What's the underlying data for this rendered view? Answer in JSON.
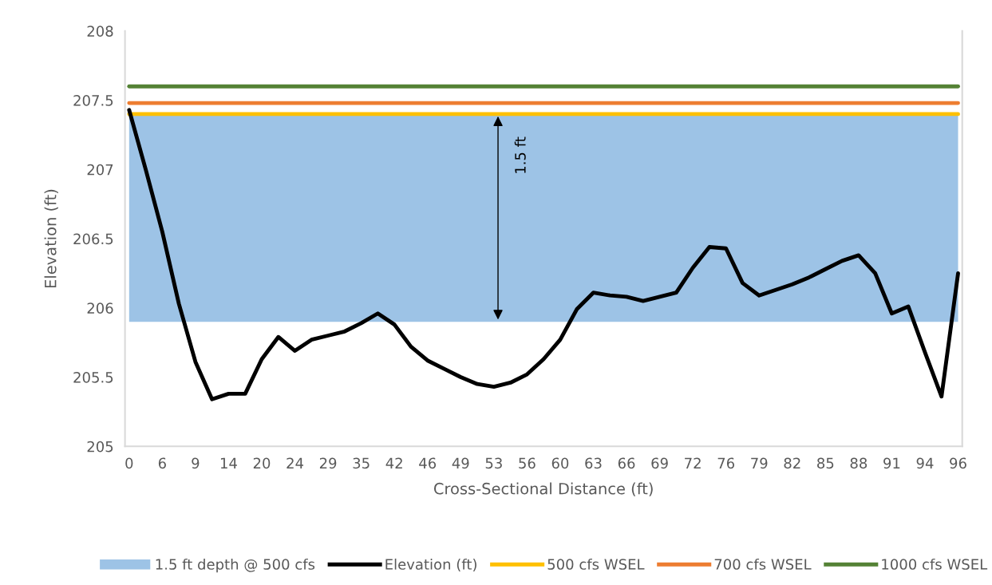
{
  "chart_data": {
    "type": "line",
    "xlabel": "Cross-Sectional Distance (ft)",
    "ylabel": "Elevation (ft)",
    "categories": [
      "0",
      null,
      "6",
      null,
      "9",
      null,
      "14",
      null,
      "20",
      null,
      "24",
      null,
      "29",
      null,
      "35",
      null,
      "42",
      null,
      "46",
      null,
      "49",
      null,
      "53",
      null,
      "56",
      null,
      "60",
      null,
      "63",
      null,
      "66",
      null,
      "69",
      null,
      "72",
      null,
      "76",
      null,
      "79",
      null,
      "82",
      null,
      "85",
      null,
      "88",
      null,
      "91",
      null,
      "94",
      null,
      "96"
    ],
    "series": [
      {
        "name": "Elevation (ft)",
        "color": "#000000",
        "values": [
          207.43,
          207.0,
          206.55,
          206.03,
          205.61,
          205.34,
          205.38,
          205.38,
          205.63,
          205.79,
          205.69,
          205.77,
          205.8,
          205.83,
          205.89,
          205.96,
          205.88,
          205.72,
          205.62,
          205.56,
          205.5,
          205.45,
          205.43,
          205.46,
          205.52,
          205.63,
          205.77,
          205.99,
          206.11,
          206.09,
          206.08,
          206.05,
          206.08,
          206.11,
          206.29,
          206.44,
          206.43,
          206.18,
          206.09,
          206.13,
          206.17,
          206.22,
          206.28,
          206.34,
          206.38,
          206.25,
          205.96,
          206.01,
          205.68,
          205.36,
          206.25
        ]
      },
      {
        "name": "500 cfs WSEL",
        "color": "#ffc000",
        "values": [
          207.4,
          207.4,
          207.4,
          207.4,
          207.4,
          207.4,
          207.4,
          207.4,
          207.4,
          207.4,
          207.4,
          207.4,
          207.4,
          207.4,
          207.4,
          207.4,
          207.4,
          207.4,
          207.4,
          207.4,
          207.4,
          207.4,
          207.4,
          207.4,
          207.4,
          207.4,
          207.4,
          207.4,
          207.4,
          207.4,
          207.4,
          207.4,
          207.4,
          207.4,
          207.4,
          207.4,
          207.4,
          207.4,
          207.4,
          207.4,
          207.4,
          207.4,
          207.4,
          207.4,
          207.4,
          207.4,
          207.4,
          207.4,
          207.4,
          207.4,
          207.4
        ]
      },
      {
        "name": "700 cfs WSEL",
        "color": "#ed7d31",
        "values": [
          207.48,
          207.48,
          207.48,
          207.48,
          207.48,
          207.48,
          207.48,
          207.48,
          207.48,
          207.48,
          207.48,
          207.48,
          207.48,
          207.48,
          207.48,
          207.48,
          207.48,
          207.48,
          207.48,
          207.48,
          207.48,
          207.48,
          207.48,
          207.48,
          207.48,
          207.48,
          207.48,
          207.48,
          207.48,
          207.48,
          207.48,
          207.48,
          207.48,
          207.48,
          207.48,
          207.48,
          207.48,
          207.48,
          207.48,
          207.48,
          207.48,
          207.48,
          207.48,
          207.48,
          207.48,
          207.48,
          207.48,
          207.48,
          207.48,
          207.48,
          207.48
        ]
      },
      {
        "name": "1000 cfs WSEL",
        "color": "#548235",
        "values": [
          207.6,
          207.6,
          207.6,
          207.6,
          207.6,
          207.6,
          207.6,
          207.6,
          207.6,
          207.6,
          207.6,
          207.6,
          207.6,
          207.6,
          207.6,
          207.6,
          207.6,
          207.6,
          207.6,
          207.6,
          207.6,
          207.6,
          207.6,
          207.6,
          207.6,
          207.6,
          207.6,
          207.6,
          207.6,
          207.6,
          207.6,
          207.6,
          207.6,
          207.6,
          207.6,
          207.6,
          207.6,
          207.6,
          207.6,
          207.6,
          207.6,
          207.6,
          207.6,
          207.6,
          207.6,
          207.6,
          207.6,
          207.6,
          207.6,
          207.6,
          207.6
        ]
      }
    ],
    "bands": [
      {
        "axis": "y",
        "from": 205.9,
        "to": 207.4,
        "label": "1.5 ft depth @ 500 cfs",
        "color": "#9dc3e6"
      }
    ],
    "annotations": [
      "1.5 ft"
    ],
    "ylim": [
      205,
      208
    ],
    "yticks": [
      205,
      205.5,
      206,
      206.5,
      207,
      207.5,
      208
    ],
    "grid": false,
    "legend": "bottom",
    "marker": "none",
    "line_style": "solid"
  }
}
